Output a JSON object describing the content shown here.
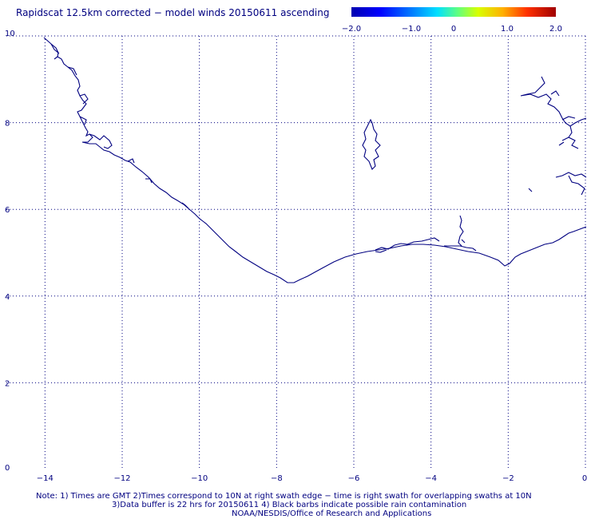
{
  "title": "Rapidscat 12.5km corrected − model winds 20150611 ascending",
  "colorbar": {
    "labels": [
      "−2.0",
      "−1.0",
      "0",
      "1.0",
      "2.0"
    ],
    "positions": [
      -2.0,
      -1.0,
      0.0,
      1.0,
      2.0
    ],
    "colors": [
      "#0000b0",
      "#0000ff",
      "#00e0ff",
      "#60ff80",
      "#d8ff00",
      "#ffb000",
      "#ff3000",
      "#a00000"
    ]
  },
  "axes": {
    "x_ticks": [
      "−14",
      "−12",
      "−10",
      "−8",
      "−6",
      "−4",
      "−2",
      "0"
    ],
    "x_values": [
      -14,
      -12,
      -10,
      -8,
      -6,
      -4,
      -2,
      0
    ],
    "y_ticks": [
      "10",
      "8",
      "6",
      "4",
      "2",
      "0"
    ],
    "y_values": [
      10,
      8,
      6,
      4,
      2,
      0
    ],
    "x_range": [
      -15,
      0
    ],
    "y_range": [
      0,
      10
    ],
    "grid": "dotted"
  },
  "coastline_color": "#000080",
  "notes": {
    "line1": "Note: 1) Times are GMT 2)Times correspond to 10N at right swath edge − time is right swath for overlapping swaths at 10N",
    "line2": "3)Data buffer is 22 hrs for 20150611 4) Black barbs indicate possible rain contamination",
    "line3": "NOAA/NESDIS/Office of Research and Applications"
  }
}
